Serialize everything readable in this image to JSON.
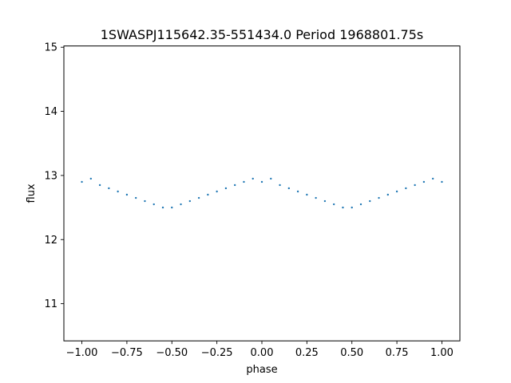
{
  "chart_data": {
    "type": "scatter",
    "title": "1SWASPJ115642.35-551434.0 Period 1968801.75s",
    "xlabel": "phase",
    "ylabel": "flux",
    "xlim": [
      -1.1,
      1.1
    ],
    "ylim": [
      10.42,
      15.02
    ],
    "xticks": [
      -1.0,
      -0.75,
      -0.5,
      -0.25,
      0.0,
      0.25,
      0.5,
      0.75,
      1.0
    ],
    "xtick_labels": [
      "−1.00",
      "−0.75",
      "−0.50",
      "−0.25",
      "0.00",
      "0.25",
      "0.50",
      "0.75",
      "1.00"
    ],
    "yticks": [
      11,
      12,
      13,
      14,
      15
    ],
    "ytick_labels": [
      "11",
      "12",
      "13",
      "14",
      "15"
    ],
    "grid": false,
    "marker_color": "#1f77b4",
    "series": [
      {
        "x": [
          -1.0,
          -0.95,
          -0.9,
          -0.85,
          -0.8,
          -0.75,
          -0.7,
          -0.65,
          -0.6,
          -0.55,
          -0.5,
          -0.45,
          -0.4,
          -0.35,
          -0.3,
          -0.25,
          -0.2,
          -0.15,
          -0.1,
          -0.05,
          0.0,
          0.05,
          0.1,
          0.15,
          0.2,
          0.25,
          0.3,
          0.35,
          0.4,
          0.45,
          0.5,
          0.55,
          0.6,
          0.65,
          0.7,
          0.75,
          0.8,
          0.85,
          0.9,
          0.95,
          1.0
        ],
        "y": [
          12.9,
          12.95,
          12.85,
          12.8,
          12.75,
          12.7,
          12.65,
          12.6,
          12.55,
          12.5,
          12.5,
          12.55,
          12.6,
          12.65,
          12.7,
          12.75,
          12.8,
          12.85,
          12.9,
          12.95,
          12.9,
          12.95,
          12.85,
          12.8,
          12.75,
          12.7,
          12.65,
          12.6,
          12.55,
          12.5,
          12.5,
          12.55,
          12.6,
          12.65,
          12.7,
          12.75,
          12.8,
          12.85,
          12.9,
          12.95,
          12.9
        ]
      }
    ]
  }
}
